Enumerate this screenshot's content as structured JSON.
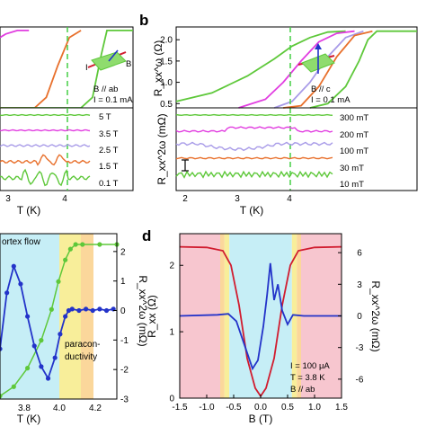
{
  "colors": {
    "green": "#5ec83a",
    "magenta": "#e13de0",
    "lavender": "#a89be8",
    "orange": "#e8702c",
    "blue": "#2333c9",
    "red": "#d11c2f",
    "cyan_band": "#c6eef6",
    "yellow_band": "#f8ee9a",
    "orange_band": "#fbd79b",
    "pink_band": "#f7c6cf",
    "dash": "#45cf45"
  },
  "panels": {
    "a": {
      "top_annotation": [
        "B // ab",
        "I = 0.1 mA"
      ],
      "bottom_labels": [
        "5 T",
        "3.5 T",
        "2.5 T",
        "1.5 T",
        "0.1 T"
      ],
      "x_ticks": [
        "3",
        "4"
      ],
      "x_label": "T (K)"
    },
    "b": {
      "letter": "b",
      "top_annotation": [
        "B // c",
        "I = 0.1 mA"
      ],
      "top_ylabel": "R_xx^ω (Ω)",
      "top_yticks": [
        "0.5",
        "1.0",
        "1.5",
        "2.0"
      ],
      "bottom_ylabel": "R_xx^2ω (mΩ)",
      "bottom_labels": [
        "300 mT",
        "200 mT",
        "100 mT",
        "30 mT",
        "10 mT"
      ],
      "x_ticks": [
        "2",
        "3",
        "4"
      ],
      "x_label": "T (K)"
    },
    "c": {
      "region_labels": [
        "ortex flow",
        "paracon-",
        "ductivity"
      ],
      "x_ticks": [
        "3.8",
        "4.0",
        "4.2"
      ],
      "x_label": "T (K)",
      "right_yticks": [
        "2",
        "1",
        "0",
        "-1",
        "-2",
        "-3"
      ],
      "right_ylabel": "R_xx^2ω (mΩ)"
    },
    "d": {
      "letter": "d",
      "left_yticks": [
        "0",
        "1",
        "2"
      ],
      "left_ylabel": "R_xx (Ω)",
      "right_yticks": [
        "6",
        "3",
        "0",
        "-3",
        "-6"
      ],
      "right_ylabel": "R_xx^2ω (mΩ)",
      "x_ticks": [
        "-1.5",
        "-1.0",
        "-0.5",
        "0.0",
        "0.5",
        "1.0",
        "1.5"
      ],
      "x_label": "B (T)",
      "annotation": [
        "I = 100 μA",
        "T = 3.8 K",
        "B // ab"
      ]
    }
  },
  "chart_data": [
    {
      "panel": "a-top",
      "type": "line",
      "xlabel": "T (K)",
      "xlim": [
        2.2,
        4.5
      ],
      "series": [
        {
          "color": "magenta",
          "x": [
            2.2,
            2.3,
            2.5,
            2.7
          ],
          "y": [
            2.0,
            2.1,
            2.2,
            2.2
          ]
        },
        {
          "color": "orange",
          "x": [
            2.2,
            2.8,
            3.0,
            3.2,
            3.4,
            3.6
          ],
          "y": [
            0.0,
            0.0,
            0.3,
            1.2,
            2.0,
            2.2
          ]
        },
        {
          "color": "green",
          "x": [
            2.2,
            3.6,
            3.8,
            3.95,
            4.05,
            4.5
          ],
          "y": [
            0.0,
            0.0,
            0.3,
            1.5,
            2.2,
            2.2
          ]
        }
      ],
      "reference_line_x": 4.05
    },
    {
      "panel": "a-bottom",
      "type": "line",
      "xlabel": "T (K)",
      "series_labels": [
        "5 T",
        "3.5 T",
        "2.5 T",
        "1.5 T",
        "0.1 T"
      ]
    },
    {
      "panel": "b-top",
      "type": "line",
      "xlabel": "T (K)",
      "ylabel": "R_xx^ω (Ω)",
      "xlim": [
        1.8,
        4.5
      ],
      "ylim": [
        0.4,
        2.3
      ],
      "series": [
        {
          "color": "green",
          "x": [
            1.8,
            2.2,
            2.6,
            2.9,
            3.1,
            3.3,
            3.5,
            3.7
          ],
          "y": [
            0.55,
            0.75,
            1.15,
            1.55,
            1.85,
            2.05,
            2.18,
            2.2
          ]
        },
        {
          "color": "magenta",
          "x": [
            2.5,
            2.8,
            3.0,
            3.2,
            3.4,
            3.6,
            3.8
          ],
          "y": [
            0.4,
            0.6,
            1.0,
            1.5,
            1.95,
            2.15,
            2.2
          ]
        },
        {
          "color": "lavender",
          "x": [
            2.9,
            3.1,
            3.3,
            3.5,
            3.7,
            3.9
          ],
          "y": [
            0.4,
            0.55,
            1.0,
            1.6,
            2.05,
            2.2
          ]
        },
        {
          "color": "orange",
          "x": [
            3.0,
            3.2,
            3.4,
            3.6,
            3.8,
            4.0
          ],
          "y": [
            0.4,
            0.45,
            0.9,
            1.6,
            2.1,
            2.2
          ]
        },
        {
          "color": "green",
          "x": [
            3.3,
            3.5,
            3.7,
            3.85,
            3.95,
            4.05,
            4.5
          ],
          "y": [
            0.4,
            0.5,
            0.9,
            1.5,
            2.0,
            2.2,
            2.2
          ]
        }
      ],
      "reference_line_x": 4.0
    },
    {
      "panel": "b-bottom",
      "type": "line",
      "xlabel": "T (K)",
      "ylabel": "R_xx^2ω (mΩ)",
      "series_labels": [
        "300 mT",
        "200 mT",
        "100 mT",
        "30 mT",
        "10 mT"
      ]
    },
    {
      "panel": "c",
      "type": "scatter",
      "xlabel": "T (K)",
      "xlim": [
        3.62,
        4.3
      ],
      "y2label": "R_xx^2ω (mΩ)",
      "y2lim": [
        -3,
        2.3
      ],
      "series": [
        {
          "color": "blue",
          "axis": "right",
          "x": [
            3.62,
            3.66,
            3.7,
            3.74,
            3.78,
            3.82,
            3.86,
            3.9,
            3.94,
            3.97,
            4.0,
            4.02,
            4.04,
            4.08,
            4.12,
            4.16,
            4.2,
            4.24,
            4.28
          ],
          "y": [
            -1.3,
            0.6,
            1.5,
            0.9,
            -0.2,
            -1.2,
            -1.9,
            -2.3,
            -1.6,
            -0.8,
            -0.2,
            0.0,
            0.05,
            0.0,
            0.05,
            0.0,
            0.05,
            0.0,
            0.05
          ]
        },
        {
          "color": "green",
          "axis": "left-fraction",
          "x": [
            3.62,
            3.7,
            3.78,
            3.86,
            3.92,
            3.96,
            4.0,
            4.03,
            4.06,
            4.1,
            4.2,
            4.3
          ],
          "y": [
            0.02,
            0.08,
            0.2,
            0.38,
            0.58,
            0.76,
            0.9,
            0.97,
            1.0,
            1.0,
            1.0,
            1.0
          ]
        }
      ],
      "bands": [
        {
          "color": "cyan",
          "from": 3.62,
          "to": 4.0
        },
        {
          "color": "yellow",
          "from": 4.0,
          "to": 4.07
        },
        {
          "color": "orange",
          "from": 4.07,
          "to": 4.12
        }
      ]
    },
    {
      "panel": "d",
      "type": "line",
      "xlabel": "B (T)",
      "ylabel": "R_xx (Ω)",
      "y2label": "R_xx^2ω (mΩ)",
      "xlim": [
        -1.5,
        1.5
      ],
      "ylim": [
        0,
        2.45
      ],
      "y2lim": [
        -7.8,
        7.8
      ],
      "series": [
        {
          "color": "red",
          "axis": "left",
          "x": [
            -1.5,
            -1.0,
            -0.7,
            -0.55,
            -0.4,
            -0.25,
            -0.1,
            0.0,
            0.1,
            0.25,
            0.4,
            0.55,
            0.7,
            1.0,
            1.5
          ],
          "y": [
            2.28,
            2.27,
            2.22,
            2.0,
            1.4,
            0.6,
            0.15,
            0.03,
            0.15,
            0.6,
            1.4,
            2.0,
            2.22,
            2.27,
            2.28
          ]
        },
        {
          "color": "blue",
          "axis": "right",
          "x": [
            -1.5,
            -0.8,
            -0.6,
            -0.45,
            -0.35,
            -0.25,
            -0.15,
            -0.05,
            0.05,
            0.12,
            0.18,
            0.25,
            0.32,
            0.4,
            0.5,
            0.6,
            0.8,
            1.5
          ],
          "y": [
            0.0,
            0.1,
            0.2,
            -0.5,
            -2.0,
            -3.5,
            -5.0,
            -4.2,
            -1.0,
            2.0,
            5.0,
            1.5,
            3.0,
            0.5,
            -0.8,
            0.1,
            0.0,
            0.0
          ]
        }
      ],
      "bands": [
        {
          "color": "pink",
          "from": -1.5,
          "to": -0.75
        },
        {
          "color": "orange",
          "from": -0.75,
          "to": -0.67
        },
        {
          "color": "yellow",
          "from": -0.67,
          "to": -0.58
        },
        {
          "color": "cyan",
          "from": -0.58,
          "to": 0.58
        },
        {
          "color": "yellow",
          "from": 0.58,
          "to": 0.67
        },
        {
          "color": "orange",
          "from": 0.67,
          "to": 0.75
        },
        {
          "color": "pink",
          "from": 0.75,
          "to": 1.5
        }
      ]
    }
  ]
}
